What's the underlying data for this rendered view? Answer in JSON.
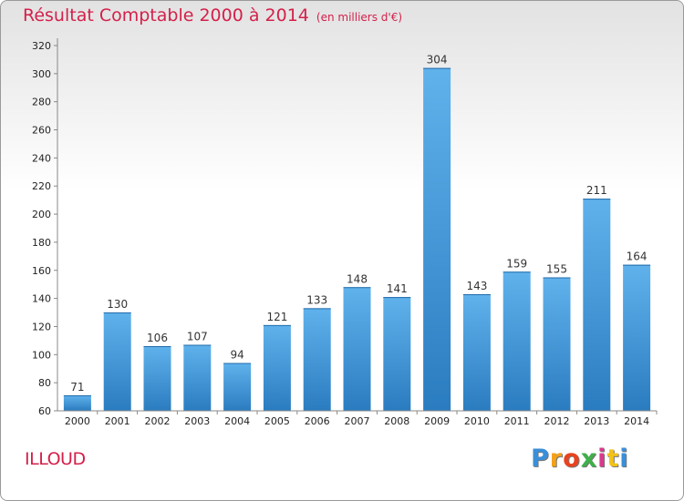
{
  "header": {
    "title": "Résultat Comptable 2000 à 2014",
    "unit": "(en milliers d'€)"
  },
  "place": "ILLOUD",
  "logo": {
    "letters": [
      "P",
      "r",
      "o",
      "x",
      "i",
      "t",
      "i"
    ],
    "colors": [
      "#3a8fd8",
      "#f2a21a",
      "#e8431f",
      "#3fb04a",
      "#d93a8c",
      "#f2c21a",
      "#3a8fd8"
    ]
  },
  "colors": {
    "bar_top": "#60b2ec",
    "bar_bottom": "#2a7cc0",
    "title": "#d4204a"
  },
  "chart_data": {
    "type": "bar",
    "title": "Résultat Comptable 2000 à 2014",
    "subtitle": "(en milliers d'€)",
    "xlabel": "",
    "ylabel": "",
    "categories": [
      "2000",
      "2001",
      "2002",
      "2003",
      "2004",
      "2005",
      "2006",
      "2007",
      "2008",
      "2009",
      "2010",
      "2011",
      "2012",
      "2013",
      "2014"
    ],
    "values": [
      71,
      130,
      106,
      107,
      94,
      121,
      133,
      148,
      141,
      304,
      143,
      159,
      155,
      211,
      164
    ],
    "ylim": [
      60,
      320
    ],
    "yticks": [
      60,
      80,
      100,
      120,
      140,
      160,
      180,
      200,
      220,
      240,
      260,
      280,
      300,
      320
    ],
    "grid": false,
    "legend": "none"
  }
}
